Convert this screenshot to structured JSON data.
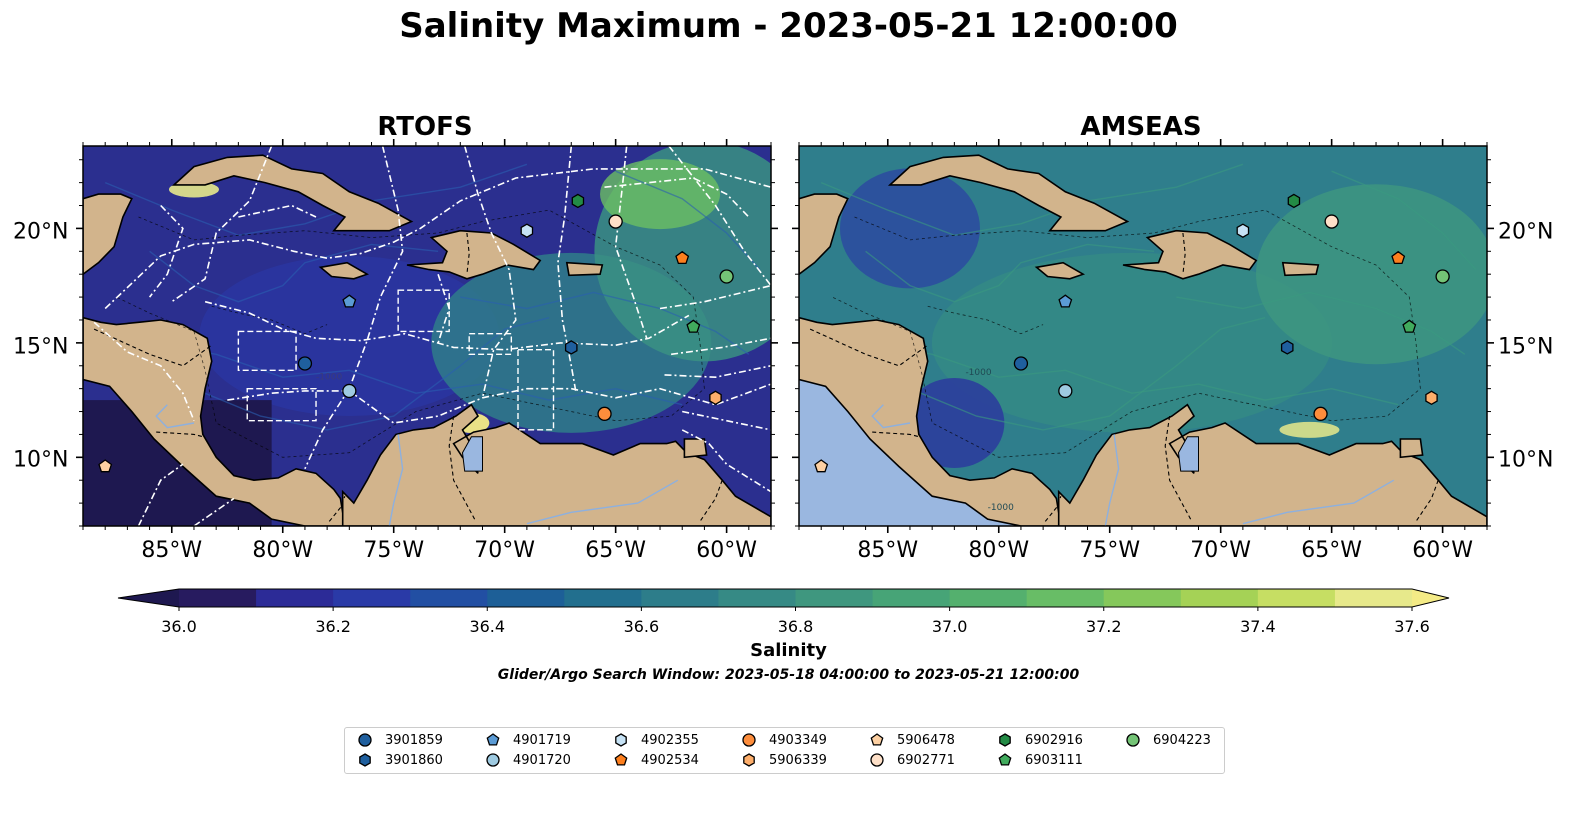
{
  "title": "Salinity Maximum - 2023-05-21 12:00:00",
  "panels": [
    {
      "title": "RTOFS"
    },
    {
      "title": "AMSEAS"
    }
  ],
  "lon_ticks": [
    "85°W",
    "80°W",
    "75°W",
    "70°W",
    "65°W",
    "60°W"
  ],
  "lat_ticks": [
    "20°N",
    "15°N",
    "10°N"
  ],
  "isobath_labels": [
    "-1000",
    "-1000",
    "-1000"
  ],
  "colorbar": {
    "label": "Salinity",
    "ticks": [
      "36.0",
      "36.2",
      "36.4",
      "36.6",
      "36.8",
      "37.0",
      "37.2",
      "37.4",
      "37.6"
    ],
    "colors": [
      "#271b5f",
      "#2c2b97",
      "#2a3aa7",
      "#224fa3",
      "#1d5f97",
      "#226f8e",
      "#2d7d8a",
      "#368a85",
      "#3f977f",
      "#47a477",
      "#54b06e",
      "#68bd66",
      "#85c85b",
      "#a5d256",
      "#c6de63",
      "#e7e98b"
    ],
    "under_color": "#1e1850",
    "over_color": "#f4eb86"
  },
  "search_window": "Glider/Argo Search Window: 2023-05-18 04:00:00 to 2023-05-21 12:00:00",
  "legend": [
    {
      "id": "3901859",
      "marker": "circle",
      "color": "#1f5f9e"
    },
    {
      "id": "3901860",
      "marker": "hexagon",
      "color": "#1f5f9e"
    },
    {
      "id": "4901719",
      "marker": "pentagon",
      "color": "#5b9bd5"
    },
    {
      "id": "4901720",
      "marker": "circle",
      "color": "#9ecae1"
    },
    {
      "id": "4902355",
      "marker": "hexagon",
      "color": "#c6e2f5"
    },
    {
      "id": "4902534",
      "marker": "pentagon",
      "color": "#fd7f1e"
    },
    {
      "id": "4903349",
      "marker": "circle",
      "color": "#fd8d3c"
    },
    {
      "id": "5906339",
      "marker": "hexagon",
      "color": "#fdae6b"
    },
    {
      "id": "5906478",
      "marker": "pentagon",
      "color": "#fdd0a2"
    },
    {
      "id": "6902771",
      "marker": "circle",
      "color": "#fee0c8"
    },
    {
      "id": "6902916",
      "marker": "hexagon",
      "color": "#238b45"
    },
    {
      "id": "6903111",
      "marker": "pentagon",
      "color": "#41ab5d"
    },
    {
      "id": "6904223",
      "marker": "circle",
      "color": "#74c476"
    }
  ],
  "floats": [
    {
      "id": "3901859",
      "lon": -79,
      "lat": 14.1
    },
    {
      "id": "3901860",
      "lon": -67,
      "lat": 14.8
    },
    {
      "id": "4901719",
      "lon": -77,
      "lat": 16.8
    },
    {
      "id": "4901720",
      "lon": -77,
      "lat": 12.9
    },
    {
      "id": "4902355",
      "lon": -69,
      "lat": 19.9
    },
    {
      "id": "4902534",
      "lon": -62,
      "lat": 18.7
    },
    {
      "id": "4903349",
      "lon": -65.5,
      "lat": 11.9
    },
    {
      "id": "5906339",
      "lon": -60.5,
      "lat": 12.6
    },
    {
      "id": "5906478",
      "lon": -88,
      "lat": 9.6
    },
    {
      "id": "6902771",
      "lon": -65,
      "lat": 20.3
    },
    {
      "id": "6902916",
      "lon": -66.7,
      "lat": 21.2
    },
    {
      "id": "6903111",
      "lon": -61.5,
      "lat": 15.7
    },
    {
      "id": "6904223",
      "lon": -60,
      "lat": 17.9
    }
  ],
  "map_extent": {
    "lon": [
      -89,
      -58
    ],
    "lat": [
      7,
      23.6
    ]
  },
  "land_color": "#d2b48c",
  "pacific_color": "#9ab7e0"
}
